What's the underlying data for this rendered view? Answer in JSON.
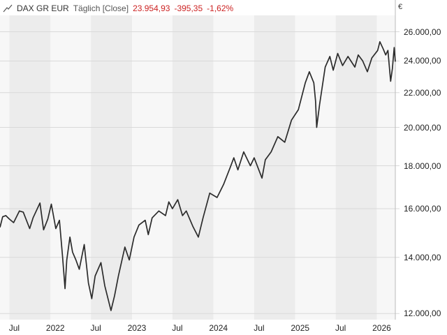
{
  "header": {
    "instrument": "DAX GR EUR",
    "interval_mode": "Täglich [Close]",
    "last_value": "23.954,93",
    "change_abs": "-395,35",
    "change_pct": "-1,62%",
    "icon": "line-chart-icon"
  },
  "colors": {
    "line": "#2b2b2b",
    "band_dark": "#ececec",
    "band_light": "#f7f7f7",
    "grid": "#d9d9d9",
    "negative": "#cc2222"
  },
  "chart_data": {
    "type": "line",
    "title": "DAX GR EUR",
    "ylabel": "€",
    "y_scale": "log",
    "ylim": [
      11800,
      27200
    ],
    "xlim": [
      "2021-05-20",
      "2026-03-25"
    ],
    "grid": true,
    "y_ticks": [
      {
        "value": 12000,
        "label": "12.000,00"
      },
      {
        "value": 14000,
        "label": "14.000,00"
      },
      {
        "value": 16000,
        "label": "16.000,00"
      },
      {
        "value": 18000,
        "label": "18.000,00"
      },
      {
        "value": 20000,
        "label": "20.000,00"
      },
      {
        "value": 22000,
        "label": "22.000,00"
      },
      {
        "value": 24000,
        "label": "24.000,00"
      },
      {
        "value": 26000,
        "label": "26.000,00"
      }
    ],
    "x_ticks": [
      {
        "date": "2021-07-01",
        "label": "Jul"
      },
      {
        "date": "2022-01-01",
        "label": "2022"
      },
      {
        "date": "2022-07-01",
        "label": "Jul"
      },
      {
        "date": "2023-01-01",
        "label": "2023"
      },
      {
        "date": "2023-07-01",
        "label": "Jul"
      },
      {
        "date": "2024-01-01",
        "label": "2024"
      },
      {
        "date": "2024-07-01",
        "label": "Jul"
      },
      {
        "date": "2025-01-01",
        "label": "2025"
      },
      {
        "date": "2025-07-01",
        "label": "Jul"
      },
      {
        "date": "2026-01-01",
        "label": "2026"
      }
    ],
    "series": [
      {
        "name": "DAX GR EUR",
        "points": [
          [
            "2021-05-20",
            15200
          ],
          [
            "2021-06-01",
            15650
          ],
          [
            "2021-06-15",
            15700
          ],
          [
            "2021-07-01",
            15550
          ],
          [
            "2021-07-20",
            15400
          ],
          [
            "2021-08-15",
            15900
          ],
          [
            "2021-09-01",
            15850
          ],
          [
            "2021-09-30",
            15150
          ],
          [
            "2021-10-15",
            15600
          ],
          [
            "2021-11-15",
            16250
          ],
          [
            "2021-12-01",
            15100
          ],
          [
            "2021-12-20",
            15550
          ],
          [
            "2022-01-05",
            16200
          ],
          [
            "2022-01-25",
            15150
          ],
          [
            "2022-02-10",
            15500
          ],
          [
            "2022-02-24",
            14050
          ],
          [
            "2022-03-07",
            12850
          ],
          [
            "2022-03-15",
            13900
          ],
          [
            "2022-03-29",
            14800
          ],
          [
            "2022-04-10",
            14200
          ],
          [
            "2022-04-25",
            13900
          ],
          [
            "2022-05-10",
            13550
          ],
          [
            "2022-06-01",
            14500
          ],
          [
            "2022-06-20",
            13050
          ],
          [
            "2022-07-05",
            12500
          ],
          [
            "2022-07-20",
            13300
          ],
          [
            "2022-08-15",
            13800
          ],
          [
            "2022-09-01",
            12950
          ],
          [
            "2022-09-29",
            12100
          ],
          [
            "2022-10-15",
            12600
          ],
          [
            "2022-11-01",
            13300
          ],
          [
            "2022-11-30",
            14400
          ],
          [
            "2022-12-20",
            13900
          ],
          [
            "2023-01-10",
            14800
          ],
          [
            "2023-02-01",
            15300
          ],
          [
            "2023-03-01",
            15500
          ],
          [
            "2023-03-15",
            14900
          ],
          [
            "2023-04-01",
            15600
          ],
          [
            "2023-05-01",
            15900
          ],
          [
            "2023-05-31",
            15700
          ],
          [
            "2023-06-15",
            16300
          ],
          [
            "2023-07-01",
            16000
          ],
          [
            "2023-07-25",
            16400
          ],
          [
            "2023-08-15",
            15700
          ],
          [
            "2023-09-01",
            15900
          ],
          [
            "2023-09-30",
            15250
          ],
          [
            "2023-10-25",
            14800
          ],
          [
            "2023-11-15",
            15600
          ],
          [
            "2023-12-15",
            16700
          ],
          [
            "2024-01-17",
            16500
          ],
          [
            "2024-02-15",
            17100
          ],
          [
            "2024-03-15",
            17900
          ],
          [
            "2024-04-01",
            18400
          ],
          [
            "2024-04-19",
            17800
          ],
          [
            "2024-05-15",
            18700
          ],
          [
            "2024-06-14",
            18000
          ],
          [
            "2024-07-01",
            18400
          ],
          [
            "2024-08-05",
            17400
          ],
          [
            "2024-08-20",
            18300
          ],
          [
            "2024-09-15",
            18700
          ],
          [
            "2024-10-15",
            19500
          ],
          [
            "2024-11-15",
            19200
          ],
          [
            "2024-12-15",
            20400
          ],
          [
            "2025-01-15",
            21000
          ],
          [
            "2025-02-15",
            22600
          ],
          [
            "2025-03-05",
            23300
          ],
          [
            "2025-03-25",
            22600
          ],
          [
            "2025-04-02",
            21500
          ],
          [
            "2025-04-07",
            20000
          ],
          [
            "2025-04-20",
            21300
          ],
          [
            "2025-05-15",
            23600
          ],
          [
            "2025-06-05",
            24300
          ],
          [
            "2025-06-20",
            23400
          ],
          [
            "2025-07-10",
            24500
          ],
          [
            "2025-08-01",
            23700
          ],
          [
            "2025-08-25",
            24300
          ],
          [
            "2025-09-25",
            23600
          ],
          [
            "2025-10-10",
            24400
          ],
          [
            "2025-10-30",
            24000
          ],
          [
            "2025-11-20",
            23300
          ],
          [
            "2025-12-10",
            24200
          ],
          [
            "2026-01-05",
            24700
          ],
          [
            "2026-01-15",
            25300
          ],
          [
            "2026-01-30",
            24800
          ],
          [
            "2026-02-10",
            24400
          ],
          [
            "2026-02-20",
            24700
          ],
          [
            "2026-03-04",
            22700
          ],
          [
            "2026-03-12",
            23500
          ],
          [
            "2026-03-20",
            24900
          ],
          [
            "2026-03-25",
            23955
          ]
        ]
      }
    ]
  }
}
